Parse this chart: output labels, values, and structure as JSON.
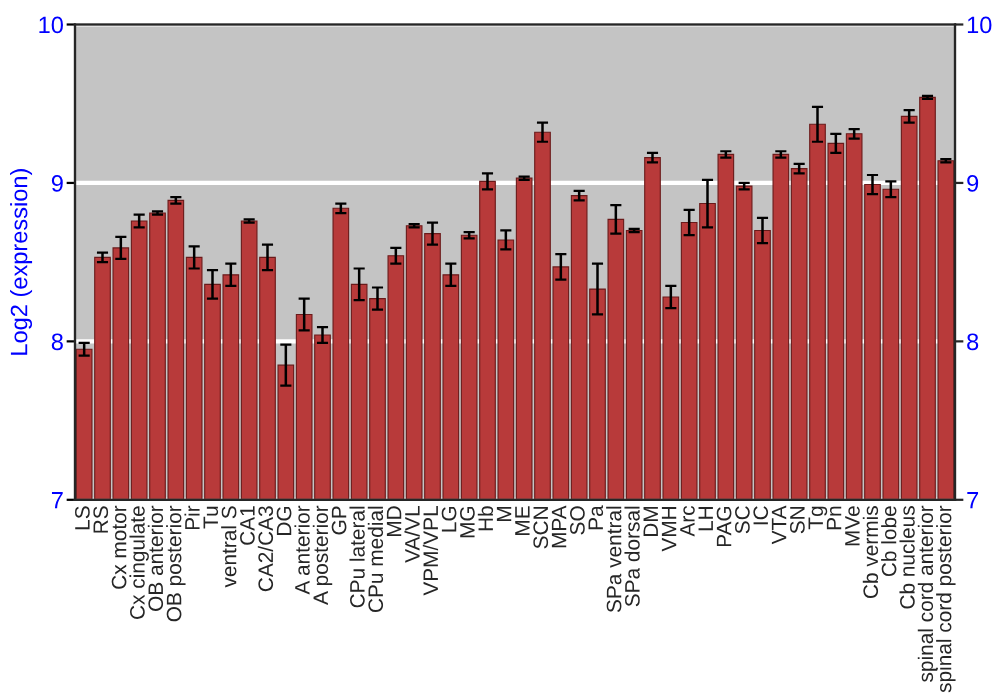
{
  "chart_data": {
    "type": "bar",
    "ylabel": "Log2 (expression)",
    "categories": [
      "LS",
      "RS",
      "Cx motor",
      "Cx cingulate",
      "OB anterior",
      "OB posterior",
      "Pir",
      "Tu",
      "ventral S",
      "CA1",
      "CA2/CA3",
      "DG",
      "A anterior",
      "A posterior",
      "GP",
      "CPu lateral",
      "CPu medial",
      "MD",
      "VA/VL",
      "VPM/VPL",
      "LG",
      "MG",
      "Hb",
      "M",
      "ME",
      "SCN",
      "MPA",
      "SO",
      "Pa",
      "SPa ventral",
      "SPa dorsal",
      "DM",
      "VMH",
      "Arc",
      "LH",
      "PAG",
      "SC",
      "IC",
      "VTA",
      "SN",
      "Tg",
      "Pn",
      "MVe",
      "Cb vermis",
      "Cb lobe",
      "Cb nucleus",
      "spinal cord anterior",
      "spinal cord posterior"
    ],
    "values": [
      7.95,
      8.53,
      8.59,
      8.76,
      8.81,
      8.89,
      8.53,
      8.36,
      8.42,
      8.76,
      8.53,
      7.85,
      8.17,
      8.04,
      8.84,
      8.36,
      8.27,
      8.54,
      8.73,
      8.68,
      8.42,
      8.67,
      9.01,
      8.64,
      9.03,
      9.32,
      8.47,
      8.92,
      8.33,
      8.77,
      8.7,
      9.16,
      8.28,
      8.75,
      8.87,
      9.18,
      8.98,
      8.7,
      9.18,
      9.09,
      9.37,
      9.25,
      9.31,
      8.99,
      8.96,
      9.42,
      9.54,
      9.14
    ],
    "errors": [
      0.04,
      0.03,
      0.07,
      0.04,
      0.01,
      0.02,
      0.07,
      0.09,
      0.07,
      0.01,
      0.08,
      0.13,
      0.1,
      0.05,
      0.03,
      0.1,
      0.07,
      0.05,
      0.01,
      0.07,
      0.07,
      0.02,
      0.05,
      0.06,
      0.01,
      0.06,
      0.08,
      0.03,
      0.16,
      0.09,
      0.01,
      0.03,
      0.07,
      0.08,
      0.15,
      0.02,
      0.02,
      0.08,
      0.02,
      0.03,
      0.11,
      0.06,
      0.03,
      0.06,
      0.05,
      0.04,
      0.01,
      0.01
    ],
    "color": "#b83a3a",
    "ylim": [
      7,
      10
    ],
    "yticks": [
      7,
      8,
      9,
      10
    ],
    "y2lim": [
      7,
      10
    ],
    "y2ticks": [
      7,
      8,
      9,
      10
    ],
    "grid": "y"
  }
}
